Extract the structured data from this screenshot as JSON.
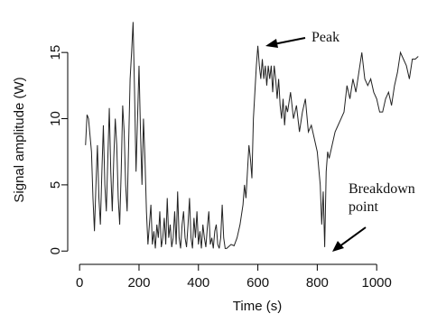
{
  "chart_data": {
    "type": "line",
    "x_label": "Time (s)",
    "y_label": "Signal amplitude (W)",
    "annotations": [
      "Peak",
      "Breakdown point"
    ],
    "color": "#222222",
    "xlim": [
      -40,
      1200
    ],
    "ylim": [
      -0.8,
      17.6
    ],
    "xticks": [
      0,
      200,
      400,
      600,
      800,
      1000
    ],
    "yticks": [
      0,
      5,
      10,
      15
    ],
    "x": [
      20,
      25,
      30,
      40,
      45,
      50,
      55,
      60,
      65,
      70,
      75,
      80,
      85,
      90,
      95,
      100,
      105,
      110,
      115,
      120,
      125,
      130,
      135,
      140,
      145,
      150,
      155,
      160,
      165,
      170,
      175,
      180,
      185,
      190,
      195,
      200,
      205,
      210,
      215,
      220,
      225,
      230,
      235,
      240,
      245,
      250,
      255,
      260,
      265,
      270,
      275,
      280,
      285,
      290,
      295,
      300,
      305,
      310,
      315,
      320,
      325,
      330,
      335,
      340,
      345,
      350,
      355,
      360,
      365,
      370,
      375,
      380,
      385,
      390,
      395,
      400,
      405,
      410,
      415,
      420,
      425,
      430,
      435,
      440,
      445,
      450,
      455,
      460,
      465,
      470,
      475,
      480,
      485,
      490,
      495,
      500,
      510,
      520,
      530,
      540,
      550,
      555,
      560,
      565,
      570,
      575,
      580,
      585,
      590,
      595,
      600,
      605,
      610,
      615,
      620,
      625,
      630,
      635,
      640,
      645,
      650,
      655,
      660,
      665,
      670,
      675,
      680,
      685,
      690,
      695,
      700,
      710,
      720,
      730,
      740,
      750,
      760,
      770,
      780,
      790,
      800,
      810,
      815,
      820,
      825,
      830,
      835,
      840,
      850,
      860,
      870,
      880,
      890,
      900,
      910,
      920,
      930,
      940,
      950,
      960,
      970,
      980,
      990,
      1000,
      1010,
      1020,
      1030,
      1040,
      1050,
      1060,
      1070,
      1080,
      1090,
      1100,
      1110,
      1120,
      1130,
      1140
    ],
    "values": [
      8,
      10.3,
      10,
      7.5,
      4,
      1.5,
      5,
      8,
      4,
      2,
      6,
      9.5,
      5,
      3,
      7,
      10.8,
      6,
      3,
      7,
      10,
      8,
      4,
      2,
      6,
      11,
      9,
      5,
      3,
      8,
      13,
      15,
      17.3,
      12,
      6,
      10,
      14,
      9,
      5,
      10,
      7,
      3,
      0.5,
      2,
      3.5,
      0.5,
      1.5,
      0.2,
      2,
      1,
      3,
      0.3,
      1,
      2.5,
      0.5,
      4,
      1,
      2,
      0.3,
      1,
      3,
      0.5,
      4.5,
      1,
      0.2,
      2,
      3,
      1,
      0.3,
      2,
      4,
      1,
      0.2,
      2.5,
      1,
      3,
      0.5,
      1.5,
      0.2,
      2,
      1,
      0.3,
      1.8,
      3,
      0.5,
      1,
      0.2,
      1.5,
      2,
      0.5,
      0.2,
      1,
      3.5,
      1,
      0.2,
      0.2,
      0.3,
      0.5,
      0.4,
      1,
      2,
      3.5,
      5,
      4,
      6,
      8,
      7,
      5.5,
      10,
      12,
      14,
      15.5,
      14,
      13,
      14.5,
      13,
      14,
      12.5,
      14,
      13,
      14,
      12,
      14,
      13,
      11.5,
      13,
      11,
      10,
      11.5,
      9.5,
      11,
      10.5,
      12,
      10,
      11,
      9,
      10.5,
      11.5,
      9,
      9.5,
      8.5,
      7.5,
      5,
      2,
      4.5,
      0.3,
      6,
      7.5,
      7,
      8,
      9,
      9.5,
      10,
      10.5,
      12.5,
      11.5,
      13,
      12,
      13.5,
      15,
      13,
      12.5,
      13,
      12,
      11.5,
      10.5,
      10.5,
      11.5,
      12,
      11,
      12.5,
      13.5,
      15,
      14.5,
      14,
      13,
      14.5,
      14.5,
      14.7
    ]
  }
}
